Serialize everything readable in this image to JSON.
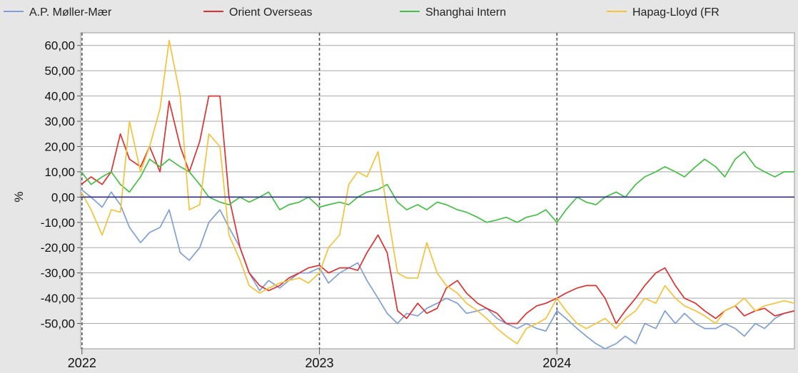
{
  "chart_data": {
    "type": "line",
    "ylabel": "%",
    "ylim": [
      -60,
      65
    ],
    "y_ticks": [
      "60,00",
      "50,00",
      "40,00",
      "30,00",
      "20,00",
      "10,00",
      "0,00",
      "-10,00",
      "-20,00",
      "-30,00",
      "-40,00",
      "-50,00"
    ],
    "y_tick_values": [
      60,
      50,
      40,
      30,
      20,
      10,
      0,
      -10,
      -20,
      -30,
      -40,
      -50
    ],
    "x_ticks": [
      "2022",
      "2023",
      "2024"
    ],
    "x_tick_values": [
      "2022-01-01",
      "2023-01-01",
      "2024-01-01"
    ],
    "x_range": [
      "2021-12-30",
      "2024-12-31"
    ],
    "grid": true,
    "legend_position": "top",
    "series": [
      {
        "name": "A.P. Møller-Mær",
        "color": "#7f9fd6",
        "x": [
          "2021-12-31",
          "2022-01-15",
          "2022-02-01",
          "2022-02-15",
          "2022-03-01",
          "2022-03-15",
          "2022-04-01",
          "2022-04-15",
          "2022-05-01",
          "2022-05-15",
          "2022-06-01",
          "2022-06-15",
          "2022-07-01",
          "2022-07-15",
          "2022-08-01",
          "2022-08-15",
          "2022-09-01",
          "2022-09-15",
          "2022-10-01",
          "2022-10-15",
          "2022-11-01",
          "2022-11-15",
          "2022-12-01",
          "2022-12-15",
          "2023-01-01",
          "2023-01-15",
          "2023-02-01",
          "2023-02-15",
          "2023-03-01",
          "2023-03-15",
          "2023-04-01",
          "2023-04-15",
          "2023-05-01",
          "2023-05-15",
          "2023-06-01",
          "2023-06-15",
          "2023-07-01",
          "2023-07-15",
          "2023-08-01",
          "2023-08-15",
          "2023-09-01",
          "2023-09-15",
          "2023-10-01",
          "2023-10-15",
          "2023-11-01",
          "2023-11-15",
          "2023-12-01",
          "2023-12-15",
          "2024-01-01",
          "2024-01-15",
          "2024-02-01",
          "2024-02-15",
          "2024-03-01",
          "2024-03-15",
          "2024-04-01",
          "2024-04-15",
          "2024-05-01",
          "2024-05-15",
          "2024-06-01",
          "2024-06-15",
          "2024-07-01",
          "2024-07-15",
          "2024-08-01",
          "2024-08-15",
          "2024-09-01",
          "2024-09-15",
          "2024-10-01",
          "2024-10-15",
          "2024-11-01",
          "2024-11-15",
          "2024-12-01",
          "2024-12-15",
          "2024-12-31"
        ],
        "values": [
          3,
          0,
          -4,
          2,
          -3,
          -12,
          -18,
          -14,
          -12,
          -5,
          -22,
          -25,
          -20,
          -10,
          -5,
          -12,
          -20,
          -30,
          -37,
          -33,
          -36,
          -33,
          -30,
          -30,
          -28,
          -34,
          -30,
          -28,
          -26,
          -33,
          -40,
          -46,
          -50,
          -46,
          -47,
          -44,
          -42,
          -40,
          -42,
          -46,
          -45,
          -44,
          -48,
          -50,
          -52,
          -50,
          -52,
          -53,
          -45,
          -48,
          -52,
          -55,
          -58,
          -60,
          -58,
          -55,
          -58,
          -50,
          -52,
          -45,
          -50,
          -46,
          -50,
          -52,
          -52,
          -50,
          -52,
          -55,
          -50,
          -52,
          -48,
          -46,
          -45
        ]
      },
      {
        "name": "Orient Overseas",
        "color": "#e03030",
        "x": [
          "2021-12-31",
          "2022-01-15",
          "2022-02-01",
          "2022-02-15",
          "2022-03-01",
          "2022-03-15",
          "2022-04-01",
          "2022-04-15",
          "2022-05-01",
          "2022-05-15",
          "2022-06-01",
          "2022-06-15",
          "2022-07-01",
          "2022-07-15",
          "2022-08-01",
          "2022-08-15",
          "2022-09-01",
          "2022-09-15",
          "2022-10-01",
          "2022-10-15",
          "2022-11-01",
          "2022-11-15",
          "2022-12-01",
          "2022-12-15",
          "2023-01-01",
          "2023-01-15",
          "2023-02-01",
          "2023-02-15",
          "2023-03-01",
          "2023-03-15",
          "2023-04-01",
          "2023-04-15",
          "2023-05-01",
          "2023-05-15",
          "2023-06-01",
          "2023-06-15",
          "2023-07-01",
          "2023-07-15",
          "2023-08-01",
          "2023-08-15",
          "2023-09-01",
          "2023-09-15",
          "2023-10-01",
          "2023-10-15",
          "2023-11-01",
          "2023-11-15",
          "2023-12-01",
          "2023-12-15",
          "2024-01-01",
          "2024-01-15",
          "2024-02-01",
          "2024-02-15",
          "2024-03-01",
          "2024-03-15",
          "2024-04-01",
          "2024-04-15",
          "2024-05-01",
          "2024-05-15",
          "2024-06-01",
          "2024-06-15",
          "2024-07-01",
          "2024-07-15",
          "2024-08-01",
          "2024-08-15",
          "2024-09-01",
          "2024-09-15",
          "2024-10-01",
          "2024-10-15",
          "2024-11-01",
          "2024-11-15",
          "2024-12-01",
          "2024-12-15",
          "2024-12-31"
        ],
        "values": [
          5,
          8,
          5,
          10,
          25,
          15,
          12,
          20,
          10,
          38,
          20,
          10,
          22,
          40,
          40,
          0,
          -20,
          -30,
          -35,
          -37,
          -35,
          -32,
          -30,
          -28,
          -27,
          -30,
          -28,
          -28,
          -29,
          -22,
          -15,
          -22,
          -45,
          -48,
          -42,
          -46,
          -44,
          -36,
          -33,
          -38,
          -42,
          -44,
          -46,
          -50,
          -50,
          -46,
          -43,
          -42,
          -40,
          -38,
          -36,
          -35,
          -35,
          -40,
          -50,
          -45,
          -40,
          -35,
          -30,
          -28,
          -35,
          -40,
          -42,
          -45,
          -48,
          -45,
          -43,
          -47,
          -45,
          -44,
          -47,
          -46,
          -45
        ]
      },
      {
        "name": "Shanghai Intern",
        "color": "#44c044",
        "x": [
          "2021-12-31",
          "2022-01-15",
          "2022-02-01",
          "2022-02-15",
          "2022-03-01",
          "2022-03-15",
          "2022-04-01",
          "2022-04-15",
          "2022-05-01",
          "2022-05-15",
          "2022-06-01",
          "2022-06-15",
          "2022-07-01",
          "2022-07-15",
          "2022-08-01",
          "2022-08-15",
          "2022-09-01",
          "2022-09-15",
          "2022-10-01",
          "2022-10-15",
          "2022-11-01",
          "2022-11-15",
          "2022-12-01",
          "2022-12-15",
          "2023-01-01",
          "2023-01-15",
          "2023-02-01",
          "2023-02-15",
          "2023-03-01",
          "2023-03-15",
          "2023-04-01",
          "2023-04-15",
          "2023-05-01",
          "2023-05-15",
          "2023-06-01",
          "2023-06-15",
          "2023-07-01",
          "2023-07-15",
          "2023-08-01",
          "2023-08-15",
          "2023-09-01",
          "2023-09-15",
          "2023-10-01",
          "2023-10-15",
          "2023-11-01",
          "2023-11-15",
          "2023-12-01",
          "2023-12-15",
          "2024-01-01",
          "2024-01-15",
          "2024-02-01",
          "2024-02-15",
          "2024-03-01",
          "2024-03-15",
          "2024-04-01",
          "2024-04-15",
          "2024-05-01",
          "2024-05-15",
          "2024-06-01",
          "2024-06-15",
          "2024-07-01",
          "2024-07-15",
          "2024-08-01",
          "2024-08-15",
          "2024-09-01",
          "2024-09-15",
          "2024-10-01",
          "2024-10-15",
          "2024-11-01",
          "2024-11-15",
          "2024-12-01",
          "2024-12-15",
          "2024-12-31"
        ],
        "values": [
          10,
          5,
          8,
          10,
          5,
          2,
          8,
          15,
          12,
          15,
          12,
          10,
          5,
          0,
          -2,
          -3,
          0,
          -2,
          0,
          2,
          -5,
          -3,
          -2,
          0,
          -4,
          -3,
          -2,
          -3,
          0,
          2,
          3,
          5,
          -2,
          -5,
          -3,
          -5,
          -2,
          -3,
          -5,
          -6,
          -8,
          -10,
          -9,
          -8,
          -10,
          -8,
          -7,
          -5,
          -10,
          -5,
          0,
          -2,
          -3,
          0,
          2,
          0,
          5,
          8,
          10,
          12,
          10,
          8,
          12,
          15,
          12,
          8,
          15,
          18,
          12,
          10,
          8,
          10,
          10
        ]
      },
      {
        "name": "Hapag-Lloyd (FR",
        "color": "#f5c23a",
        "x": [
          "2021-12-31",
          "2022-01-15",
          "2022-02-01",
          "2022-02-15",
          "2022-03-01",
          "2022-03-15",
          "2022-04-01",
          "2022-04-15",
          "2022-05-01",
          "2022-05-15",
          "2022-06-01",
          "2022-06-15",
          "2022-07-01",
          "2022-07-15",
          "2022-08-01",
          "2022-08-15",
          "2022-09-01",
          "2022-09-15",
          "2022-10-01",
          "2022-10-15",
          "2022-11-01",
          "2022-11-15",
          "2022-12-01",
          "2022-12-15",
          "2023-01-01",
          "2023-01-15",
          "2023-02-01",
          "2023-02-15",
          "2023-03-01",
          "2023-03-15",
          "2023-04-01",
          "2023-04-15",
          "2023-05-01",
          "2023-05-15",
          "2023-06-01",
          "2023-06-15",
          "2023-07-01",
          "2023-07-15",
          "2023-08-01",
          "2023-08-15",
          "2023-09-01",
          "2023-09-15",
          "2023-10-01",
          "2023-10-15",
          "2023-11-01",
          "2023-11-15",
          "2023-12-01",
          "2023-12-15",
          "2024-01-01",
          "2024-01-15",
          "2024-02-01",
          "2024-02-15",
          "2024-03-01",
          "2024-03-15",
          "2024-04-01",
          "2024-04-15",
          "2024-05-01",
          "2024-05-15",
          "2024-06-01",
          "2024-06-15",
          "2024-07-01",
          "2024-07-15",
          "2024-08-01",
          "2024-08-15",
          "2024-09-01",
          "2024-09-15",
          "2024-10-01",
          "2024-10-15",
          "2024-11-01",
          "2024-11-15",
          "2024-12-01",
          "2024-12-15",
          "2024-12-31"
        ],
        "values": [
          2,
          -5,
          -15,
          -5,
          -6,
          30,
          10,
          20,
          35,
          62,
          40,
          -5,
          -3,
          25,
          20,
          -15,
          -25,
          -35,
          -38,
          -36,
          -34,
          -33,
          -32,
          -34,
          -30,
          -20,
          -15,
          5,
          10,
          8,
          18,
          -5,
          -30,
          -32,
          -32,
          -18,
          -30,
          -35,
          -38,
          -42,
          -45,
          -48,
          -52,
          -55,
          -58,
          -52,
          -50,
          -48,
          -40,
          -45,
          -50,
          -52,
          -50,
          -48,
          -52,
          -48,
          -45,
          -40,
          -42,
          -35,
          -40,
          -43,
          -45,
          -47,
          -50,
          -45,
          -43,
          -40,
          -45,
          -43,
          -42,
          -41,
          -42
        ]
      }
    ]
  }
}
